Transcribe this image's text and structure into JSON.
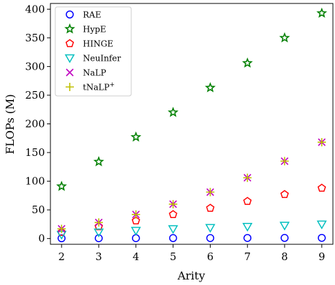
{
  "chart_data": {
    "type": "scatter",
    "title": "",
    "xlabel": "Arity",
    "ylabel": "FLOPs (M)",
    "x": [
      2,
      3,
      4,
      5,
      6,
      7,
      8,
      9
    ],
    "xlim": [
      1.7,
      9.3
    ],
    "ylim": [
      -10,
      410
    ],
    "xticks": [
      "2",
      "3",
      "4",
      "5",
      "6",
      "7",
      "8",
      "9"
    ],
    "yticks": [
      "0",
      "50",
      "100",
      "150",
      "200",
      "250",
      "300",
      "350",
      "400"
    ],
    "grid": false,
    "legend_position": "top-left",
    "series": [
      {
        "name": "RAE",
        "marker": "circle",
        "color": "#0000ff",
        "values": [
          0.5,
          0.6,
          0.7,
          0.8,
          0.9,
          1.0,
          1.1,
          1.2
        ]
      },
      {
        "name": "HypE",
        "marker": "star",
        "color": "#008000",
        "values": [
          91,
          134,
          177,
          220,
          263,
          306,
          350,
          393
        ]
      },
      {
        "name": "HINGE",
        "marker": "pentagon",
        "color": "#ff0000",
        "values": [
          11,
          21,
          31,
          42,
          53,
          65,
          77,
          88
        ]
      },
      {
        "name": "NeuInfer",
        "marker": "triangle-down",
        "color": "#00bfbf",
        "values": [
          7,
          11,
          14,
          17,
          19,
          21,
          23,
          25
        ]
      },
      {
        "name": "NaLP",
        "marker": "x",
        "color": "#bf00bf",
        "values": [
          17,
          28,
          42,
          60,
          81,
          106,
          135,
          168
        ]
      },
      {
        "name": "tNaLP",
        "name_superscript": "+",
        "marker": "plus",
        "color": "#bfbf00",
        "values": [
          17,
          28,
          42,
          60,
          81,
          106,
          135,
          168
        ]
      }
    ]
  }
}
